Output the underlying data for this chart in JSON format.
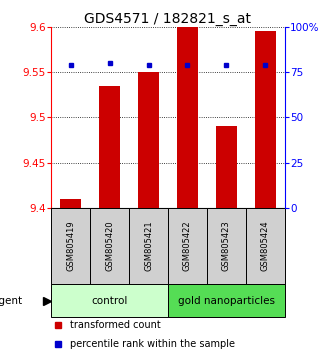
{
  "title": "GDS4571 / 182821_s_at",
  "samples": [
    "GSM805419",
    "GSM805420",
    "GSM805421",
    "GSM805422",
    "GSM805423",
    "GSM805424"
  ],
  "bar_values": [
    9.41,
    9.535,
    9.55,
    9.6,
    9.49,
    9.595
  ],
  "percentile_values": [
    79,
    80,
    79,
    79,
    79,
    79
  ],
  "bar_color": "#cc0000",
  "dot_color": "#0000cc",
  "ylim_left": [
    9.4,
    9.6
  ],
  "ylim_right": [
    0,
    100
  ],
  "yticks_left": [
    9.4,
    9.45,
    9.5,
    9.55,
    9.6
  ],
  "yticks_right": [
    0,
    25,
    50,
    75,
    100
  ],
  "ytick_labels_right": [
    "0",
    "25",
    "50",
    "75",
    "100%"
  ],
  "groups": [
    {
      "label": "control",
      "start": 0,
      "end": 3,
      "color": "#ccffcc"
    },
    {
      "label": "gold nanoparticles",
      "start": 3,
      "end": 6,
      "color": "#55dd55"
    }
  ],
  "agent_label": "agent",
  "legend_items": [
    {
      "label": "transformed count",
      "color": "#cc0000"
    },
    {
      "label": "percentile rank within the sample",
      "color": "#0000cc"
    }
  ],
  "bar_width": 0.55,
  "bar_bottom": 9.4,
  "background_color": "#ffffff",
  "title_fontsize": 10,
  "tick_fontsize": 7.5,
  "sample_fontsize": 6,
  "group_fontsize": 7.5,
  "legend_fontsize": 7
}
